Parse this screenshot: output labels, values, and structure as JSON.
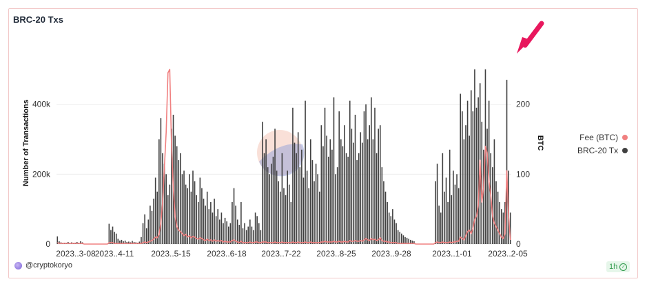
{
  "card": {
    "title": "BRC-20 Txs"
  },
  "credit": {
    "author": "@cryptokoryo"
  },
  "badge": {
    "label": "1h"
  },
  "legend": [
    {
      "label": "Fee (BTC)",
      "color": "#f08080"
    },
    {
      "label": "BRC-20 Tx",
      "color": "#404040"
    }
  ],
  "chart_data": {
    "type": "bar",
    "title": "BRC-20 Txs",
    "x_tick_labels": [
      "2023..3-08",
      "2023..4-11",
      "2023..5-15",
      "2023..6-18",
      "2023..7-22",
      "2023..8-25",
      "2023..9-28",
      "2023..1-01",
      "2023..2-05"
    ],
    "ylabel_left": "Number of Transactions",
    "ylabel_right": "BTC",
    "y_left_ticks": [
      "0",
      "200k",
      "400k"
    ],
    "y_left_range": [
      0,
      600000
    ],
    "y_right_ticks": [
      "0",
      "100",
      "200"
    ],
    "y_right_range": [
      0,
      300
    ],
    "grid": true,
    "legend_position": "right",
    "series": [
      {
        "name": "BRC-20 Tx",
        "kind": "bar",
        "axis": "left",
        "color": "#404040",
        "values": [
          22000,
          8000,
          5000,
          3000,
          4000,
          2000,
          6000,
          3000,
          5000,
          2000,
          4000,
          6000,
          4000,
          8000,
          5000,
          0,
          0,
          0,
          0,
          0,
          0,
          0,
          0,
          0,
          0,
          0,
          0,
          0,
          0,
          58000,
          40000,
          50000,
          35000,
          30000,
          15000,
          10000,
          12000,
          8000,
          10000,
          6000,
          7000,
          5000,
          9000,
          6000,
          5000,
          4000,
          7000,
          20000,
          60000,
          85000,
          45000,
          70000,
          110000,
          95000,
          130000,
          190000,
          150000,
          300000,
          360000,
          260000,
          230000,
          200000,
          140000,
          170000,
          330000,
          370000,
          310000,
          280000,
          240000,
          260000,
          200000,
          210000,
          170000,
          160000,
          200000,
          150000,
          210000,
          180000,
          140000,
          120000,
          190000,
          160000,
          130000,
          110000,
          150000,
          100000,
          120000,
          90000,
          130000,
          80000,
          100000,
          70000,
          90000,
          60000,
          75000,
          65000,
          50000,
          60000,
          120000,
          160000,
          110000,
          70000,
          55000,
          120000,
          45000,
          60000,
          40000,
          50000,
          70000,
          50000,
          40000,
          90000,
          80000,
          60000,
          40000,
          350000,
          260000,
          300000,
          220000,
          200000,
          230000,
          250000,
          330000,
          210000,
          180000,
          150000,
          260000,
          160000,
          140000,
          210000,
          170000,
          120000,
          390000,
          290000,
          260000,
          320000,
          220000,
          270000,
          190000,
          410000,
          210000,
          160000,
          300000,
          240000,
          180000,
          230000,
          200000,
          150000,
          340000,
          280000,
          390000,
          310000,
          250000,
          300000,
          270000,
          420000,
          200000,
          220000,
          380000,
          300000,
          280000,
          340000,
          260000,
          250000,
          410000,
          330000,
          290000,
          370000,
          240000,
          260000,
          320000,
          290000,
          380000,
          400000,
          300000,
          340000,
          420000,
          300000,
          390000,
          260000,
          330000,
          340000,
          220000,
          180000,
          150000,
          120000,
          90000,
          80000,
          100000,
          70000,
          60000,
          40000,
          35000,
          30000,
          25000,
          20000,
          18000,
          15000,
          12000,
          10000,
          8000,
          0,
          0,
          0,
          0,
          0,
          0,
          0,
          0,
          0,
          0,
          0,
          180000,
          230000,
          110000,
          90000,
          260000,
          150000,
          190000,
          120000,
          270000,
          140000,
          210000,
          170000,
          200000,
          160000,
          430000,
          380000,
          300000,
          340000,
          410000,
          310000,
          440000,
          380000,
          500000,
          390000,
          420000,
          460000,
          350000,
          270000,
          500000,
          330000,
          410000,
          260000,
          220000,
          300000,
          180000,
          150000,
          120000,
          100000,
          90000,
          120000,
          470000,
          210000,
          90000
        ]
      },
      {
        "name": "Fee (BTC)",
        "kind": "line",
        "axis": "right",
        "color": "#f08080",
        "values": [
          2,
          1,
          1,
          1,
          1,
          1,
          1,
          1,
          1,
          1,
          1,
          1,
          1,
          1,
          1,
          0,
          0,
          0,
          0,
          0,
          0,
          0,
          0,
          0,
          0,
          0,
          0,
          0,
          0,
          2,
          2,
          2,
          1,
          1,
          1,
          1,
          1,
          1,
          1,
          1,
          1,
          1,
          1,
          1,
          1,
          1,
          1,
          1,
          2,
          3,
          2,
          3,
          4,
          5,
          7,
          10,
          9,
          14,
          30,
          60,
          110,
          160,
          245,
          250,
          140,
          80,
          40,
          25,
          20,
          18,
          15,
          12,
          14,
          10,
          12,
          9,
          11,
          10,
          8,
          7,
          9,
          8,
          6,
          5,
          7,
          5,
          6,
          4,
          6,
          4,
          5,
          4,
          5,
          3,
          4,
          3,
          3,
          3,
          5,
          6,
          4,
          3,
          2,
          4,
          2,
          2,
          2,
          2,
          3,
          2,
          2,
          3,
          3,
          2,
          2,
          3,
          3,
          3,
          2,
          2,
          2,
          2,
          3,
          2,
          2,
          2,
          3,
          2,
          2,
          2,
          2,
          2,
          3,
          2,
          2,
          3,
          2,
          2,
          2,
          3,
          2,
          2,
          3,
          2,
          2,
          2,
          2,
          2,
          3,
          3,
          4,
          3,
          3,
          3,
          3,
          4,
          3,
          3,
          4,
          3,
          3,
          4,
          3,
          3,
          5,
          4,
          4,
          5,
          4,
          4,
          5,
          4,
          6,
          8,
          6,
          5,
          8,
          6,
          7,
          5,
          6,
          9,
          5,
          4,
          4,
          3,
          3,
          2,
          2,
          2,
          2,
          1,
          1,
          1,
          1,
          1,
          1,
          1,
          1,
          1,
          1,
          0,
          0,
          0,
          0,
          0,
          0,
          0,
          0,
          0,
          0,
          0,
          2,
          3,
          2,
          2,
          3,
          2,
          2,
          2,
          3,
          2,
          3,
          3,
          4,
          4,
          10,
          8,
          6,
          12,
          18,
          20,
          15,
          22,
          35,
          40,
          55,
          120,
          60,
          80,
          140,
          130,
          90,
          70,
          40,
          30,
          25,
          20,
          15,
          10,
          8,
          15,
          105,
          40,
          6
        ]
      }
    ]
  }
}
